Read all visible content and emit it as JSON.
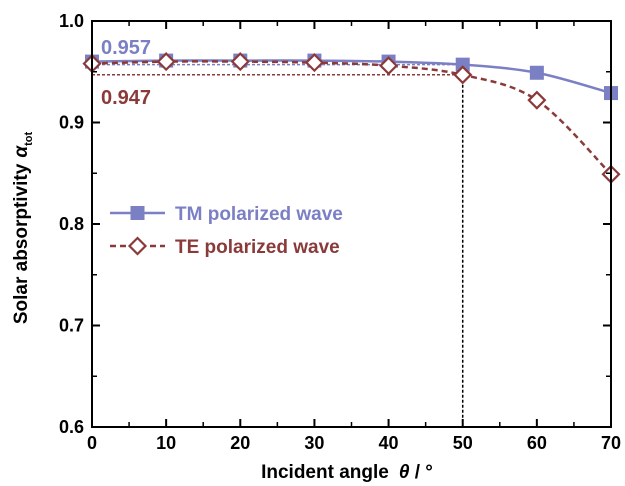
{
  "chart_data": {
    "type": "line",
    "x": [
      0,
      10,
      20,
      30,
      40,
      50,
      60,
      70
    ],
    "series": [
      {
        "name": "TM polarized wave",
        "values": [
          0.96,
          0.961,
          0.961,
          0.961,
          0.96,
          0.957,
          0.949,
          0.929
        ],
        "color": "#7b7fc4",
        "marker": "filled-square",
        "line": "solid"
      },
      {
        "name": "TE polarized wave",
        "values": [
          0.958,
          0.96,
          0.96,
          0.959,
          0.956,
          0.947,
          0.922,
          0.849
        ],
        "color": "#8b3a3a",
        "marker": "open-diamond",
        "line": "dashed"
      }
    ],
    "xlabel": {
      "main": "Incident angle",
      "symbol": "θ",
      "unit": " / °"
    },
    "ylabel": {
      "main": "Solar absorptivity",
      "symbol": "α",
      "sub": "tot"
    },
    "xlim": [
      0,
      70
    ],
    "ylim": [
      0.6,
      1.0
    ],
    "x_ticks": [
      0,
      10,
      20,
      30,
      40,
      50,
      60,
      70
    ],
    "y_ticks": [
      "0.6",
      "0.7",
      "0.8",
      "0.9",
      "1.0"
    ],
    "grid": false,
    "legend_position": "middle-left",
    "annotations": [
      {
        "text": "0.957",
        "series": "TM polarized wave",
        "value": 0.957,
        "color": "#7b7fc4"
      },
      {
        "text": "0.947",
        "series": "TE polarized wave",
        "value": 0.947,
        "color": "#8b3a3a"
      }
    ],
    "reference_x": 50
  }
}
